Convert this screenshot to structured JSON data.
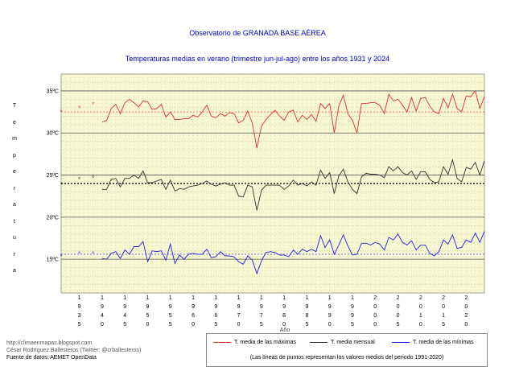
{
  "header": {
    "title": "Observatorio de GRANADA BASE AÉREA",
    "subtitle": "Temperaturas medias en verano (trimestre jun-jul-ago) entre los años 1931 y 2024"
  },
  "colors": {
    "max": "#e03030",
    "mean": "#333333",
    "min": "#2020e0",
    "plot_bg": "#f7f7d2"
  },
  "footer": {
    "line1": "http://climaenmapas.blogspot.com",
    "line2": "César Rodríguez Ballesteros (Twitter: @crballesteros)",
    "line3": "Fuente de datos: AEMET OpenData"
  },
  "legend": {
    "max": "T. media de las máximas",
    "mean": "T. media mensual",
    "min": "T. media de las mínimas",
    "note": "(Las líneas de puntos representan los valores medios del periodo 1991-2020)"
  },
  "chart_data": {
    "type": "line",
    "title": "Temperaturas medias en verano (trimestre jun-jul-ago) entre los años 1931 y 2024",
    "xlabel": "Año",
    "ylabel": "Temperatura",
    "xlim": [
      1931,
      2024
    ],
    "ylim": [
      11,
      37
    ],
    "y_ticks": [
      15,
      20,
      25,
      30,
      35
    ],
    "y_tick_labels": [
      "15ºC",
      "20ºC",
      "25ºC",
      "30ºC",
      "35ºC"
    ],
    "x_ticks": [
      1935,
      1940,
      1945,
      1950,
      1955,
      1960,
      1965,
      1970,
      1975,
      1980,
      1985,
      1990,
      1995,
      2000,
      2005,
      2010,
      2015,
      2020
    ],
    "x_tick_labels": [
      "1935",
      "1940",
      "1945",
      "1950",
      "1955",
      "1960",
      "1965",
      "1970",
      "1975",
      "1980",
      "1985",
      "1990",
      "1995",
      "2000",
      "2005",
      "2010",
      "2015",
      "2020"
    ],
    "grid": true,
    "legend_position": "bottom-right",
    "reference_1991_2020": {
      "max": 32.5,
      "mean": 24.0,
      "min": 15.6
    },
    "isolated_points": {
      "x": [
        1931,
        1935,
        1938
      ],
      "max": [
        32.6,
        33.1,
        33.5
      ],
      "mean": [
        24.0,
        24.6,
        24.8
      ],
      "min": [
        15.5,
        15.8,
        15.8
      ]
    },
    "x": [
      1940,
      1941,
      1942,
      1943,
      1944,
      1945,
      1946,
      1947,
      1948,
      1949,
      1950,
      1951,
      1952,
      1953,
      1954,
      1955,
      1956,
      1957,
      1958,
      1959,
      1960,
      1961,
      1962,
      1963,
      1964,
      1965,
      1966,
      1967,
      1968,
      1969,
      1970,
      1971,
      1972,
      1973,
      1974,
      1975,
      1976,
      1977,
      1978,
      1979,
      1980,
      1981,
      1982,
      1983,
      1984,
      1985,
      1986,
      1987,
      1988,
      1989,
      1990,
      1991,
      1992,
      1993,
      1994,
      1995,
      1996,
      1997,
      1998,
      1999,
      2000,
      2001,
      2002,
      2003,
      2004,
      2005,
      2006,
      2007,
      2008,
      2009,
      2010,
      2011,
      2012,
      2013,
      2014,
      2015,
      2016,
      2017,
      2018,
      2019,
      2020,
      2021,
      2022,
      2023,
      2024
    ],
    "series": [
      {
        "name": "T. media de las máximas",
        "values": [
          31.3,
          31.5,
          32.9,
          33.4,
          32.3,
          33.6,
          34.0,
          33.6,
          33.1,
          33.8,
          33.7,
          32.8,
          32.9,
          33.4,
          31.9,
          32.5,
          31.6,
          31.6,
          31.7,
          31.7,
          32.1,
          31.9,
          32.5,
          33.3,
          32.0,
          31.8,
          32.3,
          32.0,
          32.4,
          32.3,
          31.2,
          31.5,
          32.6,
          31.2,
          28.2,
          30.8,
          31.6,
          32.2,
          32.7,
          32.0,
          31.5,
          32.5,
          32.7,
          31.3,
          32.1,
          31.6,
          32.2,
          31.4,
          33.5,
          32.9,
          33.5,
          30.0,
          33.2,
          34.5,
          32.3,
          31.5,
          30.0,
          33.5,
          33.5,
          33.6,
          33.6,
          33.3,
          32.3,
          34.6,
          33.8,
          34.0,
          33.3,
          32.5,
          34.2,
          32.6,
          34.1,
          34.2,
          33.2,
          32.5,
          32.3,
          34.1,
          33.0,
          34.6,
          32.9,
          32.5,
          34.4,
          34.3,
          35.0,
          32.9,
          34.3
        ]
      },
      {
        "name": "T. media mensual",
        "values": [
          23.3,
          23.3,
          24.5,
          24.6,
          23.6,
          24.6,
          24.6,
          25.0,
          24.6,
          25.5,
          24.1,
          24.1,
          24.3,
          24.5,
          23.3,
          24.4,
          23.1,
          23.4,
          23.3,
          23.6,
          23.7,
          23.8,
          24.0,
          24.3,
          23.9,
          23.7,
          23.9,
          24.1,
          23.8,
          23.8,
          22.5,
          22.4,
          23.8,
          23.6,
          20.8,
          23.2,
          23.8,
          23.8,
          23.8,
          23.8,
          23.3,
          23.7,
          24.4,
          23.8,
          24.0,
          23.7,
          24.2,
          23.8,
          25.6,
          24.6,
          25.3,
          22.8,
          24.9,
          25.7,
          24.2,
          23.3,
          22.8,
          24.8,
          25.2,
          25.1,
          25.1,
          25.0,
          24.7,
          26.0,
          25.5,
          26.0,
          25.3,
          25.0,
          25.5,
          24.5,
          25.4,
          25.4,
          24.5,
          24.1,
          24.2,
          26.0,
          25.1,
          26.8,
          24.6,
          24.2,
          25.9,
          25.7,
          26.5,
          25.0,
          26.7
        ]
      },
      {
        "name": "T. media de las mínimas",
        "values": [
          15.1,
          15.0,
          15.7,
          15.9,
          15.1,
          16.1,
          15.6,
          16.5,
          16.5,
          17.1,
          14.7,
          16.0,
          15.9,
          16.0,
          14.9,
          16.8,
          14.5,
          15.5,
          15.0,
          15.6,
          15.7,
          15.6,
          15.6,
          16.2,
          15.2,
          15.3,
          15.9,
          15.4,
          15.4,
          15.3,
          14.7,
          14.4,
          15.4,
          14.9,
          13.3,
          14.8,
          15.8,
          15.9,
          15.8,
          15.5,
          15.5,
          15.3,
          16.1,
          15.6,
          16.2,
          15.9,
          16.2,
          15.9,
          17.8,
          16.4,
          17.3,
          15.6,
          16.7,
          17.9,
          16.6,
          15.5,
          15.6,
          16.9,
          16.9,
          16.7,
          17.0,
          16.8,
          16.1,
          17.6,
          17.3,
          18.0,
          17.0,
          16.7,
          17.2,
          16.1,
          16.7,
          16.7,
          15.7,
          15.4,
          15.9,
          17.3,
          16.8,
          17.9,
          16.3,
          16.4,
          17.3,
          17.0,
          18.1,
          17.0,
          18.3
        ]
      }
    ]
  }
}
